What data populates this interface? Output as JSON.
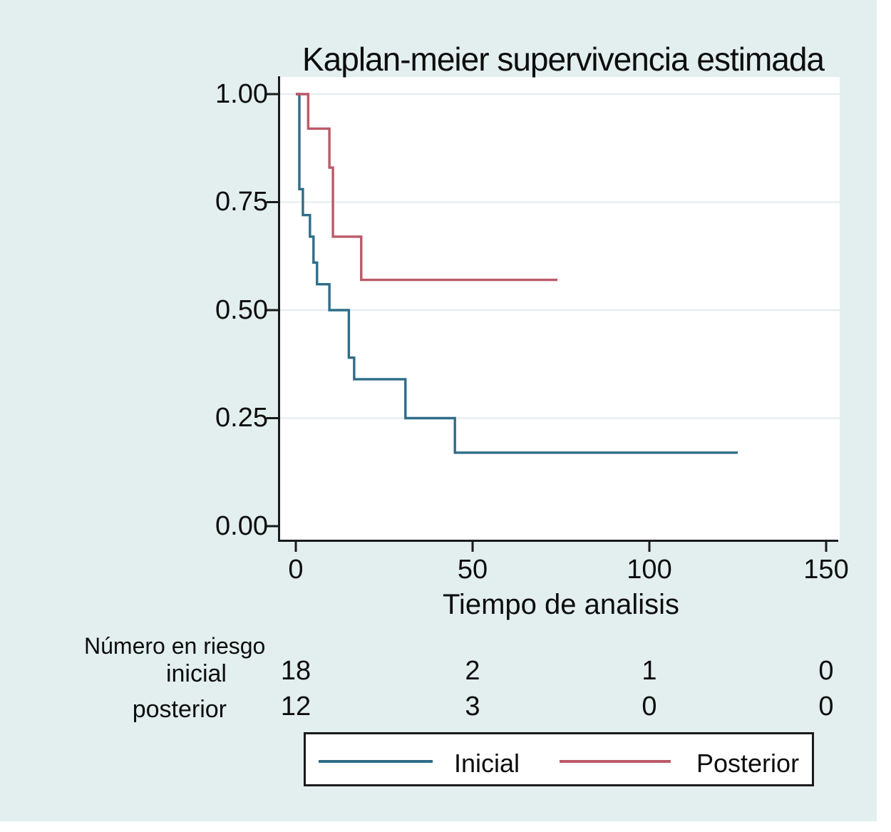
{
  "title": "Kaplan-meier supervivencia estimada",
  "chart_data": {
    "type": "line",
    "subtype": "kaplan-meier-step-survival",
    "title": "Kaplan-meier supervivencia estimada",
    "xlabel": "Tiempo de analisis",
    "ylabel": "",
    "xlim": [
      0,
      153
    ],
    "ylim": [
      0,
      1
    ],
    "grid": "horizontal",
    "legend_position": "bottom-box",
    "xticks": {
      "values": [
        0,
        50,
        100,
        150
      ],
      "labels": [
        "0",
        "50",
        "100",
        "150"
      ]
    },
    "yticks": {
      "values": [
        1.0,
        0.75,
        0.5,
        0.25,
        0.0
      ],
      "labels": [
        "1.00",
        "0.75",
        "0.50",
        "0.25",
        "0.00"
      ]
    },
    "series": [
      {
        "name": "Inicial",
        "color": "#2f6d89",
        "steps": [
          [
            0,
            1.0
          ],
          [
            1,
            0.78
          ],
          [
            2,
            0.72
          ],
          [
            4,
            0.67
          ],
          [
            5,
            0.61
          ],
          [
            6,
            0.56
          ],
          [
            9.5,
            0.5
          ],
          [
            15,
            0.39
          ],
          [
            16.5,
            0.34
          ],
          [
            31,
            0.25
          ],
          [
            45,
            0.17
          ]
        ],
        "end_time": 125
      },
      {
        "name": "Posterior",
        "color": "#bc5a68",
        "steps": [
          [
            0,
            1.0
          ],
          [
            3.5,
            0.92
          ],
          [
            9.5,
            0.83
          ],
          [
            10.5,
            0.67
          ],
          [
            18.5,
            0.57
          ]
        ],
        "end_time": 74
      }
    ]
  },
  "axis": {
    "ytick_labels": [
      "1.00",
      "0.75",
      "0.50",
      "0.25",
      "0.00"
    ],
    "xtick_labels": [
      "0",
      "50",
      "100",
      "150"
    ],
    "xlabel": "Tiempo de analisis"
  },
  "risk_table": {
    "header": "Número en riesgo",
    "rows": [
      {
        "label": "inicial",
        "values": [
          "18",
          "2",
          "1",
          "0"
        ]
      },
      {
        "label": "posterior",
        "values": [
          "12",
          "3",
          "0",
          "0"
        ]
      }
    ]
  },
  "legend": {
    "entries": [
      {
        "label": "Inicial",
        "color": "#2f6d89"
      },
      {
        "label": "Posterior",
        "color": "#bc5a68"
      }
    ]
  },
  "colors": {
    "background": "#e2efee",
    "plot_background": "#ffffff",
    "gridline": "#e3ebee",
    "axis": "#1a1a1a",
    "series_inicial": "#2f6d89",
    "series_posterior": "#bc5a68"
  }
}
